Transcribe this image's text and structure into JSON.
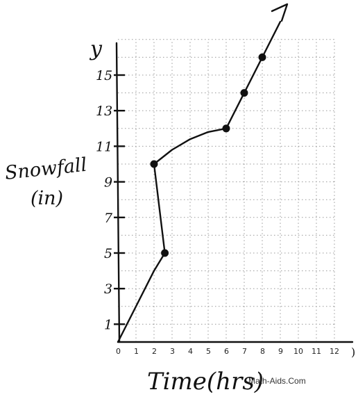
{
  "chart_data": {
    "type": "line",
    "title": "",
    "ylabel_line1": "Snowfall",
    "ylabel_line2": "(in)",
    "xlabel": "Time(hrs)",
    "y_axis_letter": "y",
    "x_axis_end_letter": ")",
    "xlim": [
      0,
      12
    ],
    "ylim": [
      0,
      17
    ],
    "x_ticks": [
      "0",
      "1",
      "2",
      "3",
      "4",
      "5",
      "6",
      "7",
      "8",
      "9",
      "10",
      "11",
      "12"
    ],
    "y_tick_labels": [
      "1",
      "3",
      "5",
      "7",
      "9",
      "11",
      "13",
      "15"
    ],
    "grid": true,
    "series": [
      {
        "x": [
          0,
          2,
          2.6,
          2.3,
          2,
          3,
          4,
          5,
          6,
          7,
          8,
          9
        ],
        "y": [
          0,
          4,
          5,
          7.5,
          10,
          10.8,
          11.4,
          11.8,
          12,
          14,
          16,
          18
        ]
      }
    ],
    "points": [
      {
        "x": 2,
        "y": 10
      },
      {
        "x": 2.6,
        "y": 5
      },
      {
        "x": 6,
        "y": 12
      },
      {
        "x": 7,
        "y": 14
      },
      {
        "x": 8,
        "y": 16
      }
    ],
    "watermark": "Math-Aids.Com"
  }
}
